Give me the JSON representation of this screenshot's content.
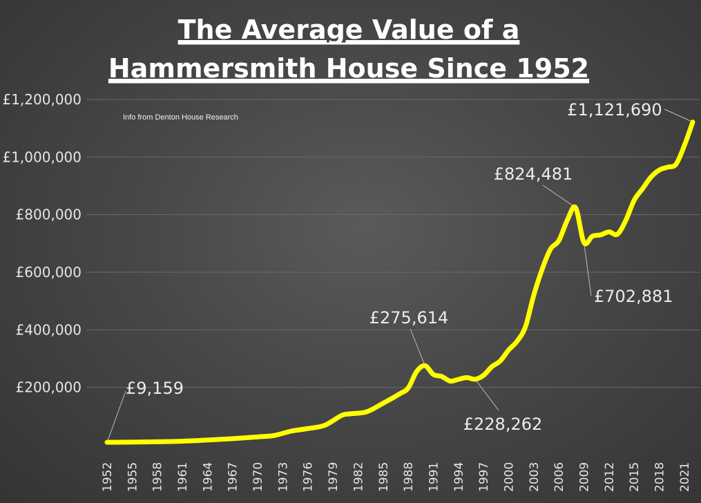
{
  "chart_data": {
    "type": "line",
    "title_lines": [
      "The Average Value of a",
      "Hammersmith House Since 1952"
    ],
    "subtitle": "Info from Denton House Research",
    "xlabel": "",
    "ylabel": "",
    "ylim": [
      0,
      1200000
    ],
    "y_ticks": [
      200000,
      400000,
      600000,
      800000,
      1000000,
      1200000
    ],
    "y_tick_labels": [
      "£200,000",
      "£400,000",
      "£600,000",
      "£800,000",
      "£1,000,000",
      "£1,200,000"
    ],
    "x_ticks": [
      1952,
      1955,
      1958,
      1961,
      1964,
      1967,
      1970,
      1973,
      1976,
      1979,
      1982,
      1985,
      1988,
      1991,
      1994,
      1997,
      2000,
      2003,
      2006,
      2009,
      2012,
      2015,
      2018,
      2021
    ],
    "grid": true,
    "line_color": "#ffff00",
    "series": [
      {
        "x": [
          1952,
          1955,
          1958,
          1961,
          1964,
          1967,
          1970,
          1972,
          1974,
          1976,
          1978,
          1980,
          1981,
          1983,
          1985,
          1987,
          1988,
          1989,
          1990,
          1991,
          1992,
          1993,
          1994,
          1995,
          1996,
          1997,
          1998,
          1999,
          2000,
          2001,
          2002,
          2003,
          2004,
          2005,
          2006,
          2007,
          2008,
          2009,
          2010,
          2011,
          2012,
          2013,
          2014,
          2015,
          2016,
          2017,
          2018,
          2019,
          2020,
          2021,
          2022
        ],
        "values": [
          9159,
          10000,
          11000,
          13000,
          17000,
          22000,
          28000,
          33000,
          48000,
          57000,
          68000,
          102000,
          108000,
          115000,
          145000,
          178000,
          198000,
          255000,
          275614,
          245000,
          238000,
          222000,
          228000,
          234000,
          228262,
          242000,
          272000,
          292000,
          330000,
          360000,
          410000,
          520000,
          610000,
          680000,
          710000,
          780000,
          824481,
          702881,
          725000,
          730000,
          740000,
          732000,
          780000,
          850000,
          890000,
          930000,
          955000,
          965000,
          975000,
          1040000,
          1121690
        ]
      }
    ],
    "annotations": [
      {
        "label": "£9,159",
        "x": 1952,
        "y": 9159
      },
      {
        "label": "£275,614",
        "x": 1990,
        "y": 275614
      },
      {
        "label": "£228,262",
        "x": 1996,
        "y": 228262
      },
      {
        "label": "£824,481",
        "x": 2008,
        "y": 824481
      },
      {
        "label": "£702,881",
        "x": 2009,
        "y": 702881
      },
      {
        "label": "£1,121,690",
        "x": 2022,
        "y": 1121690
      }
    ]
  }
}
